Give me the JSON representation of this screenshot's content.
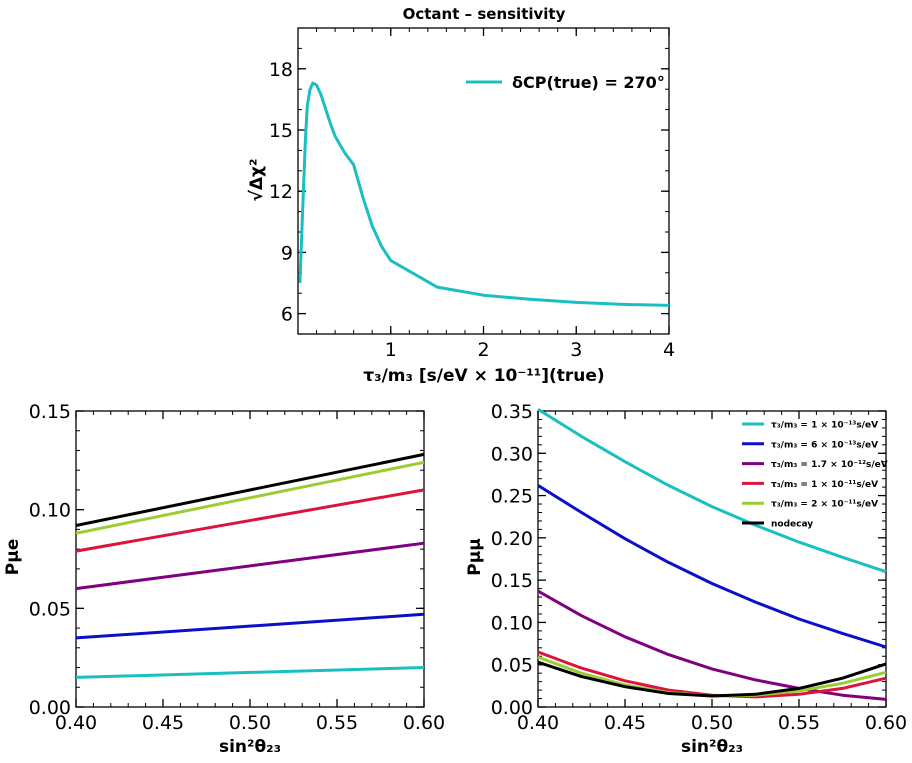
{
  "chart_data": [
    {
      "id": "top",
      "type": "line",
      "title": "Octant – sensitivity",
      "xlabel": "τ₃/m₃ [s/eV × 10⁻¹¹](true)",
      "ylabel": "√Δχ²",
      "xlim": [
        0,
        4
      ],
      "ylim": [
        5,
        20
      ],
      "xticks": [
        1,
        2,
        3,
        4
      ],
      "xtick_labels": [
        "1",
        "2",
        "3",
        "4"
      ],
      "yticks": [
        6,
        9,
        12,
        15,
        18
      ],
      "ytick_labels": [
        "6",
        "9",
        "12",
        "15",
        "18"
      ],
      "legend_position": "top-right",
      "series": [
        {
          "name": "δCP(true) = 270°",
          "color": "#1BBFC0",
          "x": [
            0.02,
            0.05,
            0.08,
            0.1,
            0.13,
            0.16,
            0.2,
            0.25,
            0.3,
            0.35,
            0.4,
            0.5,
            0.6,
            0.7,
            0.8,
            0.9,
            1.0,
            1.5,
            2.0,
            2.5,
            3.0,
            3.5,
            4.0
          ],
          "y": [
            7.5,
            11.0,
            14.5,
            16.2,
            17.0,
            17.3,
            17.2,
            16.7,
            16.0,
            15.3,
            14.7,
            13.9,
            13.3,
            11.7,
            10.3,
            9.3,
            8.6,
            7.3,
            6.9,
            6.7,
            6.55,
            6.45,
            6.4
          ]
        }
      ]
    },
    {
      "id": "bottom-left",
      "type": "line",
      "xlabel": "sin²θ₂₃",
      "ylabel": "Pμe",
      "xlim": [
        0.4,
        0.6
      ],
      "ylim": [
        0.0,
        0.15
      ],
      "xticks": [
        0.4,
        0.45,
        0.5,
        0.55,
        0.6
      ],
      "xtick_labels": [
        "0.40",
        "0.45",
        "0.50",
        "0.55",
        "0.60"
      ],
      "yticks": [
        0.0,
        0.05,
        0.1,
        0.15
      ],
      "ytick_labels": [
        "0.00",
        "0.05",
        "0.10",
        "0.15"
      ],
      "series": [
        {
          "color": "#1BBFC0",
          "x": [
            0.4,
            0.6
          ],
          "y": [
            0.015,
            0.02
          ]
        },
        {
          "color": "#0B0FC8",
          "x": [
            0.4,
            0.6
          ],
          "y": [
            0.035,
            0.047
          ]
        },
        {
          "color": "#800080",
          "x": [
            0.4,
            0.6
          ],
          "y": [
            0.06,
            0.083
          ]
        },
        {
          "color": "#DC143C",
          "x": [
            0.4,
            0.6
          ],
          "y": [
            0.079,
            0.11
          ]
        },
        {
          "color": "#9ACD32",
          "x": [
            0.4,
            0.6
          ],
          "y": [
            0.088,
            0.124
          ]
        },
        {
          "color": "#000000",
          "x": [
            0.4,
            0.6
          ],
          "y": [
            0.092,
            0.128
          ]
        }
      ]
    },
    {
      "id": "bottom-right",
      "type": "line",
      "xlabel": "sin²θ₂₃",
      "ylabel": "Pμμ",
      "xlim": [
        0.4,
        0.6
      ],
      "ylim": [
        0.0,
        0.35
      ],
      "xticks": [
        0.4,
        0.45,
        0.5,
        0.55,
        0.6
      ],
      "xtick_labels": [
        "0.40",
        "0.45",
        "0.50",
        "0.55",
        "0.60"
      ],
      "yticks": [
        0.0,
        0.05,
        0.1,
        0.15,
        0.2,
        0.25,
        0.3,
        0.35
      ],
      "ytick_labels": [
        "0.00",
        "0.05",
        "0.10",
        "0.15",
        "0.20",
        "0.25",
        "0.30",
        "0.35"
      ],
      "legend_position": "top-right",
      "series": [
        {
          "name": "τ₃/m₃ = 1 × 10⁻¹³s/eV",
          "color": "#1BBFC0",
          "x": [
            0.4,
            0.425,
            0.45,
            0.475,
            0.5,
            0.525,
            0.55,
            0.575,
            0.6
          ],
          "y": [
            0.352,
            0.32,
            0.29,
            0.262,
            0.237,
            0.215,
            0.195,
            0.177,
            0.16
          ]
        },
        {
          "name": "τ₃/m₃ = 6 × 10⁻¹³s/eV",
          "color": "#0B0FC8",
          "x": [
            0.4,
            0.425,
            0.45,
            0.475,
            0.5,
            0.525,
            0.55,
            0.575,
            0.6
          ],
          "y": [
            0.262,
            0.23,
            0.199,
            0.171,
            0.146,
            0.124,
            0.104,
            0.087,
            0.071
          ]
        },
        {
          "name": "τ₃/m₃ = 1.7 × 10⁻¹²s/eV",
          "color": "#800080",
          "x": [
            0.4,
            0.425,
            0.45,
            0.475,
            0.5,
            0.525,
            0.55,
            0.575,
            0.6
          ],
          "y": [
            0.137,
            0.108,
            0.083,
            0.062,
            0.045,
            0.032,
            0.022,
            0.014,
            0.009
          ]
        },
        {
          "name": "τ₃/m₃ = 1 × 10⁻¹¹s/eV",
          "color": "#DC143C",
          "x": [
            0.4,
            0.425,
            0.45,
            0.475,
            0.5,
            0.525,
            0.55,
            0.575,
            0.6
          ],
          "y": [
            0.065,
            0.046,
            0.031,
            0.02,
            0.014,
            0.012,
            0.015,
            0.022,
            0.034
          ]
        },
        {
          "name": "τ₃/m₃ = 2 × 10⁻¹¹s/eV",
          "color": "#9ACD32",
          "x": [
            0.4,
            0.425,
            0.45,
            0.475,
            0.5,
            0.525,
            0.55,
            0.575,
            0.6
          ],
          "y": [
            0.059,
            0.04,
            0.026,
            0.017,
            0.013,
            0.014,
            0.019,
            0.028,
            0.041
          ]
        },
        {
          "name": "nodecay",
          "color": "#000000",
          "x": [
            0.4,
            0.425,
            0.45,
            0.475,
            0.5,
            0.525,
            0.55,
            0.575,
            0.6
          ],
          "y": [
            0.053,
            0.036,
            0.024,
            0.016,
            0.013,
            0.015,
            0.022,
            0.034,
            0.051
          ]
        }
      ]
    }
  ]
}
